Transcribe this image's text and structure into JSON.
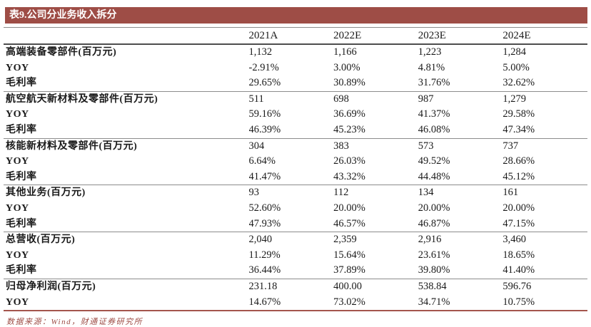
{
  "page": {
    "title": "表9.公司分业务收入拆分",
    "source_note": "数据来源：Wind，财通证券研究所"
  },
  "colors": {
    "accent": "#9E4D46",
    "title_text": "#FFFFFF",
    "body_text": "#1A1A1A",
    "header_rule": "#4D4D4D",
    "section_rule": "#8C8C8C"
  },
  "chart_data": {
    "type": "table",
    "title": "表9.公司分业务收入拆分",
    "columns": [
      "",
      "2021A",
      "2022E",
      "2023E",
      "2024E"
    ],
    "rows": [
      {
        "label": "高端装备零部件(百万元)",
        "values": [
          "1,132",
          "1,166",
          "1,223",
          "1,284"
        ],
        "section_start": true
      },
      {
        "label": "YOY",
        "values": [
          "-2.91%",
          "3.00%",
          "4.81%",
          "5.00%"
        ],
        "section_start": false
      },
      {
        "label": "毛利率",
        "values": [
          "29.65%",
          "30.89%",
          "31.76%",
          "32.62%"
        ],
        "section_start": false
      },
      {
        "label": "航空航天新材料及零部件(百万元)",
        "values": [
          "511",
          "698",
          "987",
          "1,279"
        ],
        "section_start": true
      },
      {
        "label": "YOY",
        "values": [
          "59.16%",
          "36.69%",
          "41.37%",
          "29.58%"
        ],
        "section_start": false
      },
      {
        "label": "毛利率",
        "values": [
          "46.39%",
          "45.23%",
          "46.08%",
          "47.34%"
        ],
        "section_start": false
      },
      {
        "label": "核能新材料及零部件(百万元)",
        "values": [
          "304",
          "383",
          "573",
          "737"
        ],
        "section_start": true
      },
      {
        "label": "YOY",
        "values": [
          "6.64%",
          "26.03%",
          "49.52%",
          "28.66%"
        ],
        "section_start": false
      },
      {
        "label": "毛利率",
        "values": [
          "41.47%",
          "43.32%",
          "44.48%",
          "45.12%"
        ],
        "section_start": false
      },
      {
        "label": "其他业务(百万元)",
        "values": [
          "93",
          "112",
          "134",
          "161"
        ],
        "section_start": true
      },
      {
        "label": "YOY",
        "values": [
          "52.60%",
          "20.00%",
          "20.00%",
          "20.00%"
        ],
        "section_start": false
      },
      {
        "label": "毛利率",
        "values": [
          "47.93%",
          "46.57%",
          "46.87%",
          "47.15%"
        ],
        "section_start": false
      },
      {
        "label": "总营收(百万元)",
        "values": [
          "2,040",
          "2,359",
          "2,916",
          "3,460"
        ],
        "section_start": true
      },
      {
        "label": "YOY",
        "values": [
          "11.29%",
          "15.64%",
          "23.61%",
          "18.65%"
        ],
        "section_start": false
      },
      {
        "label": "毛利率",
        "values": [
          "36.44%",
          "37.89%",
          "39.80%",
          "41.40%"
        ],
        "section_start": false
      },
      {
        "label": "归母净利润(百万元)",
        "values": [
          "231.18",
          "400.00",
          "538.84",
          "596.76"
        ],
        "section_start": true
      },
      {
        "label": "YOY",
        "values": [
          "14.67%",
          "73.02%",
          "34.71%",
          "10.75%"
        ],
        "section_start": false
      }
    ]
  }
}
